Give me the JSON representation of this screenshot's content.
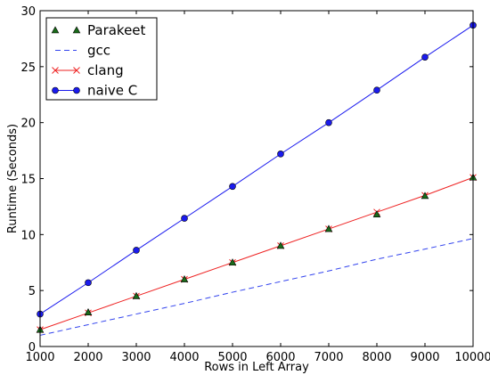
{
  "chart_data": {
    "type": "line",
    "title": "",
    "xlabel": "Rows in Left Array",
    "ylabel": "Runtime (Seconds)",
    "xlim": [
      1000,
      10000
    ],
    "ylim": [
      0,
      30
    ],
    "xticks": [
      1000,
      2000,
      3000,
      4000,
      5000,
      6000,
      7000,
      8000,
      9000,
      10000
    ],
    "yticks": [
      0,
      5,
      10,
      15,
      20,
      25,
      30
    ],
    "grid": false,
    "legend_position": "top-left",
    "x": [
      1000,
      2000,
      3000,
      4000,
      5000,
      6000,
      7000,
      8000,
      9000,
      10000
    ],
    "series": [
      {
        "name": "Parakeet",
        "values": [
          1.5,
          3.05,
          4.5,
          6.0,
          7.5,
          9.0,
          10.5,
          11.8,
          13.45,
          15.1
        ],
        "color": "#1a6b1a",
        "style": "triangle-marker"
      },
      {
        "name": "gcc",
        "values": [
          1.0,
          1.95,
          2.9,
          3.85,
          4.85,
          5.8,
          6.75,
          7.8,
          8.7,
          9.65
        ],
        "color": "#3344ee",
        "style": "dashed-line"
      },
      {
        "name": "clang",
        "values": [
          1.5,
          3.0,
          4.5,
          6.0,
          7.5,
          9.0,
          10.5,
          12.0,
          13.5,
          15.1
        ],
        "color": "#ee2222",
        "style": "line-x-marker"
      },
      {
        "name": "naive C",
        "values": [
          2.9,
          5.7,
          8.6,
          11.45,
          14.3,
          17.2,
          20.0,
          22.9,
          25.85,
          28.7
        ],
        "color": "#1a1aee",
        "style": "line-circle-marker"
      }
    ]
  }
}
